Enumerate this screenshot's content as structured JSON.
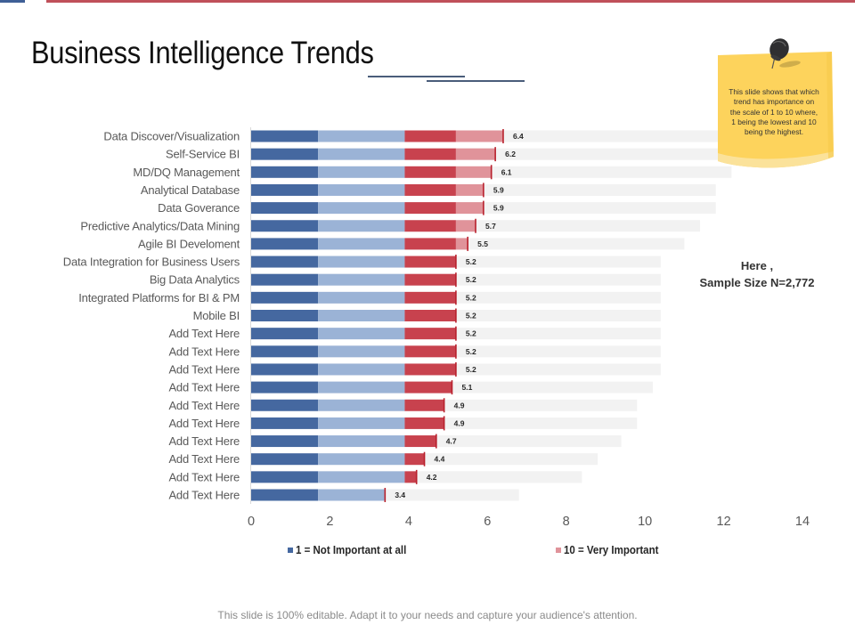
{
  "header": {
    "accent_blue": "#3f5f96",
    "accent_red": "#c0505a",
    "title": "Business Intelligence Trends"
  },
  "note": {
    "lines": [
      "This slide shows that which",
      "trend has importance on",
      "the scale of 1 to 10 where,",
      "1 being the lowest and 10",
      "being the highest."
    ],
    "color": "#fdd35c"
  },
  "sample_size": {
    "line1": "Here ,",
    "line2": "Sample Size N=2,772"
  },
  "footer": "This slide is 100% editable. Adapt it to your needs and capture your audience's attention.",
  "chart_data": {
    "type": "bar",
    "orientation": "horizontal",
    "stacked": true,
    "title": "",
    "xlabel": "",
    "ylabel": "",
    "xlim": [
      0,
      14
    ],
    "xticks": [
      "0",
      "2",
      "4",
      "6",
      "8",
      "10",
      "12",
      "14"
    ],
    "grid": false,
    "categories": [
      "Data Discover/Visualization",
      "Self-Service BI",
      "MD/DQ Management",
      "Analytical Database",
      "Data Goverance",
      "Predictive Analytics/Data Mining",
      "Agile BI Develoment",
      "Data Integration for Business Users",
      "Big Data Analytics",
      "Integrated Platforms for BI & PM",
      "Mobile BI",
      "Add Text Here",
      "Add Text Here",
      "Add Text Here",
      "Add Text Here",
      "Add Text Here",
      "Add Text Here",
      "Add Text Here",
      "Add Text Here",
      "Add Text Here",
      "Add Text Here"
    ],
    "values": [
      6.4,
      6.2,
      6.1,
      5.9,
      5.9,
      5.7,
      5.5,
      5.2,
      5.2,
      5.2,
      5.2,
      5.2,
      5.2,
      5.2,
      5.1,
      4.9,
      4.9,
      4.7,
      4.4,
      4.2,
      3.4
    ],
    "track_values": [
      12.8,
      12.4,
      12.2,
      11.8,
      11.8,
      11.4,
      11.0,
      10.4,
      10.4,
      10.4,
      10.4,
      10.4,
      10.4,
      10.4,
      10.2,
      9.8,
      9.8,
      9.4,
      8.8,
      8.4,
      6.8
    ],
    "segment_breaks": [
      1.7,
      3.9,
      5.2
    ],
    "segment_colors": [
      "#4568a0",
      "#9bb3d6",
      "#c8424e",
      "#e0939a"
    ],
    "track_color": "#f2f2f2",
    "marker_color": "#b8202c",
    "legend_position": "bottom",
    "legend": [
      {
        "label": "1 = Not Important at all",
        "color": "#4568a0"
      },
      {
        "label": "10 = Very Important",
        "color": "#e0939a"
      }
    ]
  }
}
